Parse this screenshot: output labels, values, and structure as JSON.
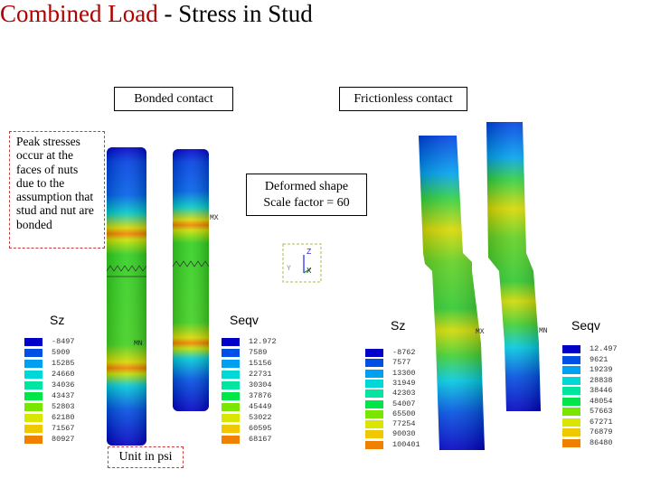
{
  "title": {
    "main": "Combined Load",
    "rest": " - Stress in Stud"
  },
  "labels": {
    "bonded": "Bonded contact",
    "frictionless": "Frictionless contact",
    "deformed_line1": "Deformed shape",
    "deformed_line2": "Scale factor = 60",
    "note": "Peak stresses occur at the faces of nuts due to the assumption that stud and nut are bonded",
    "unit": "Unit in psi",
    "sz_left": "Sz",
    "seqv_left": "Seqv",
    "sz_right": "Sz",
    "seqv_right": "Seqv",
    "axis_z": "Z",
    "axis_y": "Y",
    "axis_x": "X",
    "tag_mx": "MX",
    "tag_mn": "MN"
  },
  "colors": {
    "accent": "#b00000",
    "scale": [
      "#0000c8",
      "#0050e6",
      "#00a0f0",
      "#00d8d8",
      "#00e6a0",
      "#00e64a",
      "#7ae600",
      "#d8e600",
      "#f0c800",
      "#f08000",
      "#e60000"
    ]
  },
  "legends": {
    "sz_left": [
      "-8497",
      "5909",
      "15285",
      "24660",
      "34036",
      "43437",
      "52803",
      "62180",
      "71567",
      "80927"
    ],
    "seqv_left": [
      "12.972",
      "7589",
      "15156",
      "22731",
      "30304",
      "37876",
      "45449",
      "53022",
      "60595",
      "68167"
    ],
    "sz_right": [
      "-8762",
      "7577",
      "13300",
      "31949",
      "42303",
      "54007",
      "65500",
      "77254",
      "90030",
      "100401"
    ],
    "seqv_right": [
      "12.497",
      "9621",
      "19239",
      "28838",
      "38446",
      "48054",
      "57663",
      "67271",
      "76879",
      "86480"
    ]
  }
}
